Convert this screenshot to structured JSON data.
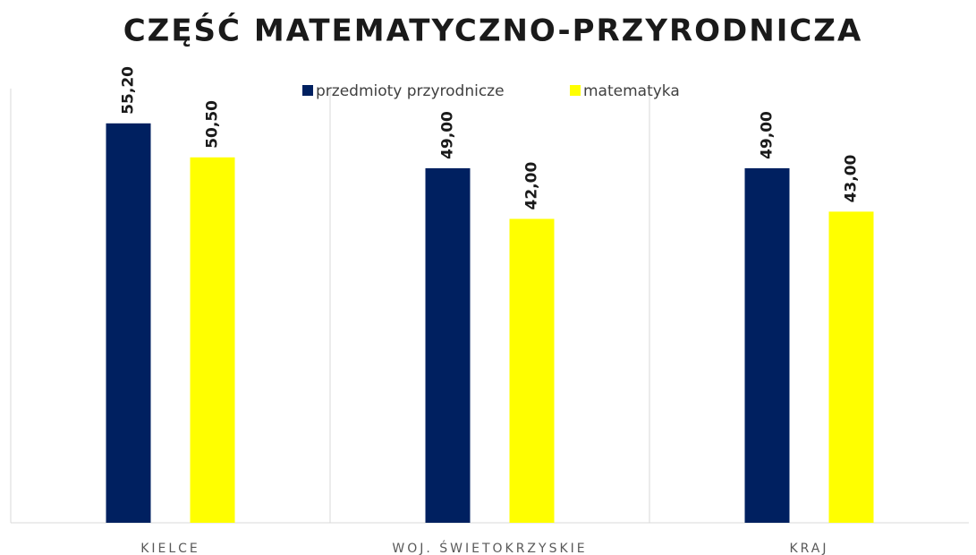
{
  "chart_data": {
    "type": "bar",
    "title": "CZĘŚĆ MATEMATYCZNO-PRZYRODNICZA",
    "categories": [
      "KIELCE",
      "WOJ. ŚWIETOKRZYSKIE",
      "KRAJ"
    ],
    "series": [
      {
        "name": "przedmioty przyrodnicze",
        "color": "#002060",
        "values": [
          55.2,
          49,
          49
        ],
        "value_labels": [
          "55,20",
          "49,00",
          "49,00"
        ]
      },
      {
        "name": "matematyka",
        "color": "#ffff00",
        "values": [
          50.5,
          42,
          43
        ],
        "value_labels": [
          "50,50",
          "42,00",
          "43,00"
        ]
      }
    ],
    "ylim": [
      0,
      60
    ],
    "legend": "top"
  }
}
